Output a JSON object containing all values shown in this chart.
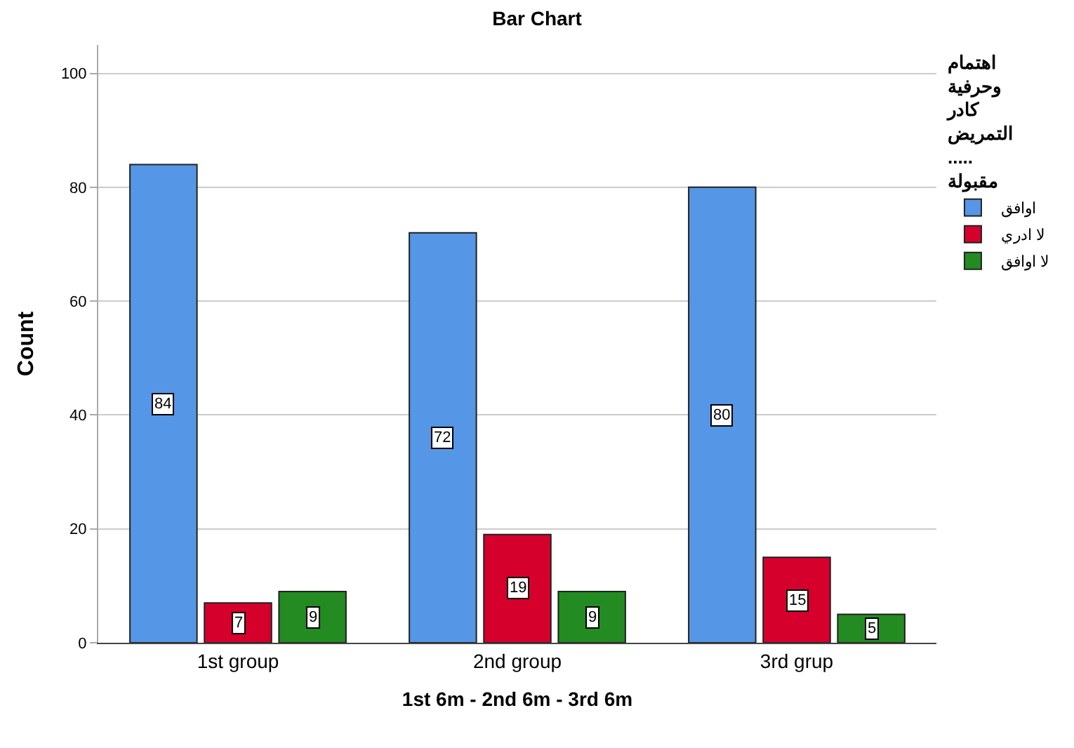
{
  "chart_data": {
    "type": "bar",
    "title": "Bar Chart",
    "xlabel": "1st 6m - 2nd 6m - 3rd 6m",
    "ylabel": "Count",
    "legend_title": "اهتمام\nوحرفية\nكادر\nالتمريض\n.....\nمقبولة",
    "categories": [
      "1st group",
      "2nd group",
      "3rd grup"
    ],
    "series": [
      {
        "name": "اوافق",
        "color": "#5596e6",
        "values": [
          84,
          72,
          80
        ]
      },
      {
        "name": "لا ادري",
        "color": "#d6002d",
        "values": [
          7,
          19,
          15
        ]
      },
      {
        "name": "لا اوافق",
        "color": "#238b21",
        "values": [
          9,
          9,
          5
        ]
      }
    ],
    "ylim": [
      0,
      105
    ],
    "yticks": [
      0,
      20,
      40,
      60,
      80,
      100
    ],
    "grid": "y",
    "legend": "right",
    "data_labels": true
  }
}
